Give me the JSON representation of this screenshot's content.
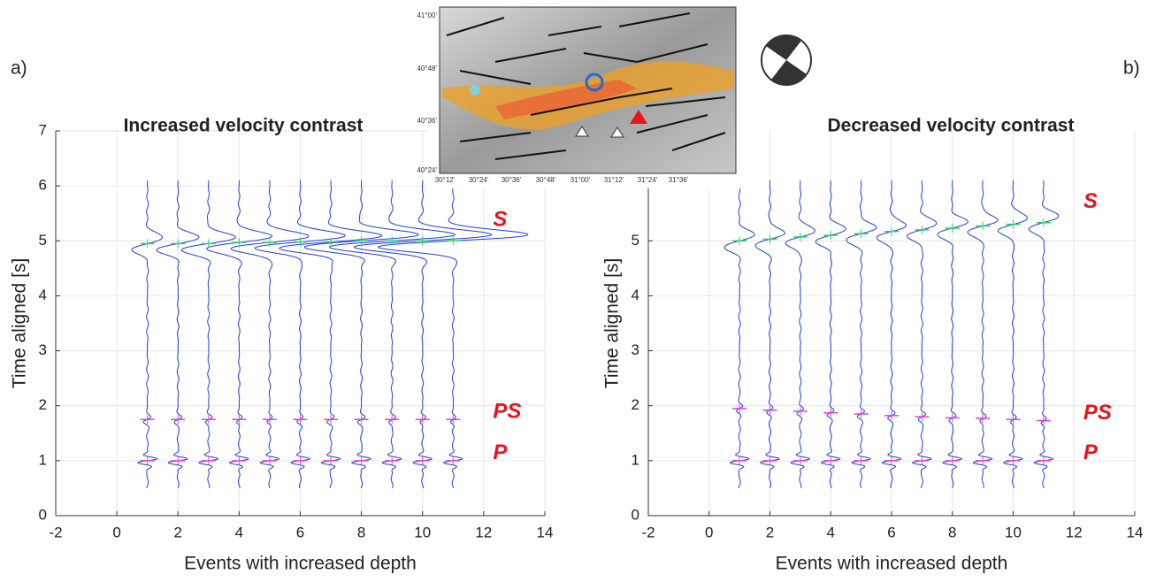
{
  "panel_labels": [
    "a)",
    "b)"
  ],
  "inset_map": {
    "lat_labels": [
      "41°00'",
      "40°48'",
      "40°36'",
      "40°24'"
    ],
    "lon_labels": [
      "30°12'",
      "30°24'",
      "30°36'",
      "30°48'",
      "31°00'",
      "31°12'",
      "31°24'",
      "31°36'"
    ]
  },
  "chart_data": [
    {
      "type": "seismogram",
      "title": "Increased velocity contrast",
      "xlabel": "Events with increased depth",
      "ylabel": "Time aligned [s]",
      "x": [
        1,
        2,
        3,
        4,
        5,
        6,
        7,
        8,
        9,
        10,
        11
      ],
      "trace_color": "#1f3fd8",
      "series": [
        {
          "color": "#e040e0",
          "values": [
            1,
            1,
            1,
            1,
            1,
            1,
            1,
            1,
            1,
            1,
            1
          ]
        },
        {
          "color": "#e040e0",
          "values": [
            1.75,
            1.75,
            1.75,
            1.75,
            1.75,
            1.75,
            1.75,
            1.75,
            1.75,
            1.75,
            1.75
          ]
        },
        {
          "color": "#2ecc71",
          "values": [
            4.95,
            4.95,
            4.95,
            4.97,
            4.97,
            4.98,
            4.98,
            5.0,
            5.0,
            5.0,
            5.0
          ]
        }
      ],
      "annotations": [
        "P",
        "PS",
        "S"
      ],
      "xlim": [
        -2,
        14
      ],
      "xticks": [
        -2,
        0,
        2,
        4,
        6,
        8,
        10,
        12,
        14
      ],
      "ylim": [
        0,
        7
      ],
      "yticks": [
        0,
        1,
        2,
        3,
        4,
        5,
        6,
        7
      ],
      "grid": true
    },
    {
      "type": "seismogram",
      "title": "Decreased velocity contrast",
      "xlabel": "Events with increased depth",
      "ylabel": "Time aligned [s]",
      "x": [
        1,
        2,
        3,
        4,
        5,
        6,
        7,
        8,
        9,
        10,
        11
      ],
      "trace_color": "#1f3fd8",
      "series": [
        {
          "color": "#e040e0",
          "values": [
            1,
            1,
            1,
            1,
            1,
            1,
            1,
            1,
            1,
            1,
            1
          ]
        },
        {
          "color": "#e040e0",
          "values": [
            1.95,
            1.92,
            1.9,
            1.87,
            1.85,
            1.82,
            1.8,
            1.78,
            1.77,
            1.75,
            1.73
          ]
        },
        {
          "color": "#2ecc71",
          "values": [
            5.0,
            5.03,
            5.07,
            5.1,
            5.13,
            5.17,
            5.2,
            5.23,
            5.27,
            5.3,
            5.33
          ]
        }
      ],
      "annotations": [
        "P",
        "PS",
        "S"
      ],
      "xlim": [
        -2,
        14
      ],
      "xticks": [
        -2,
        0,
        2,
        4,
        6,
        8,
        10,
        12,
        14
      ],
      "ylim": [
        0,
        7
      ],
      "yticks": [
        0,
        1,
        2,
        3,
        4,
        5
      ],
      "grid": true
    }
  ]
}
